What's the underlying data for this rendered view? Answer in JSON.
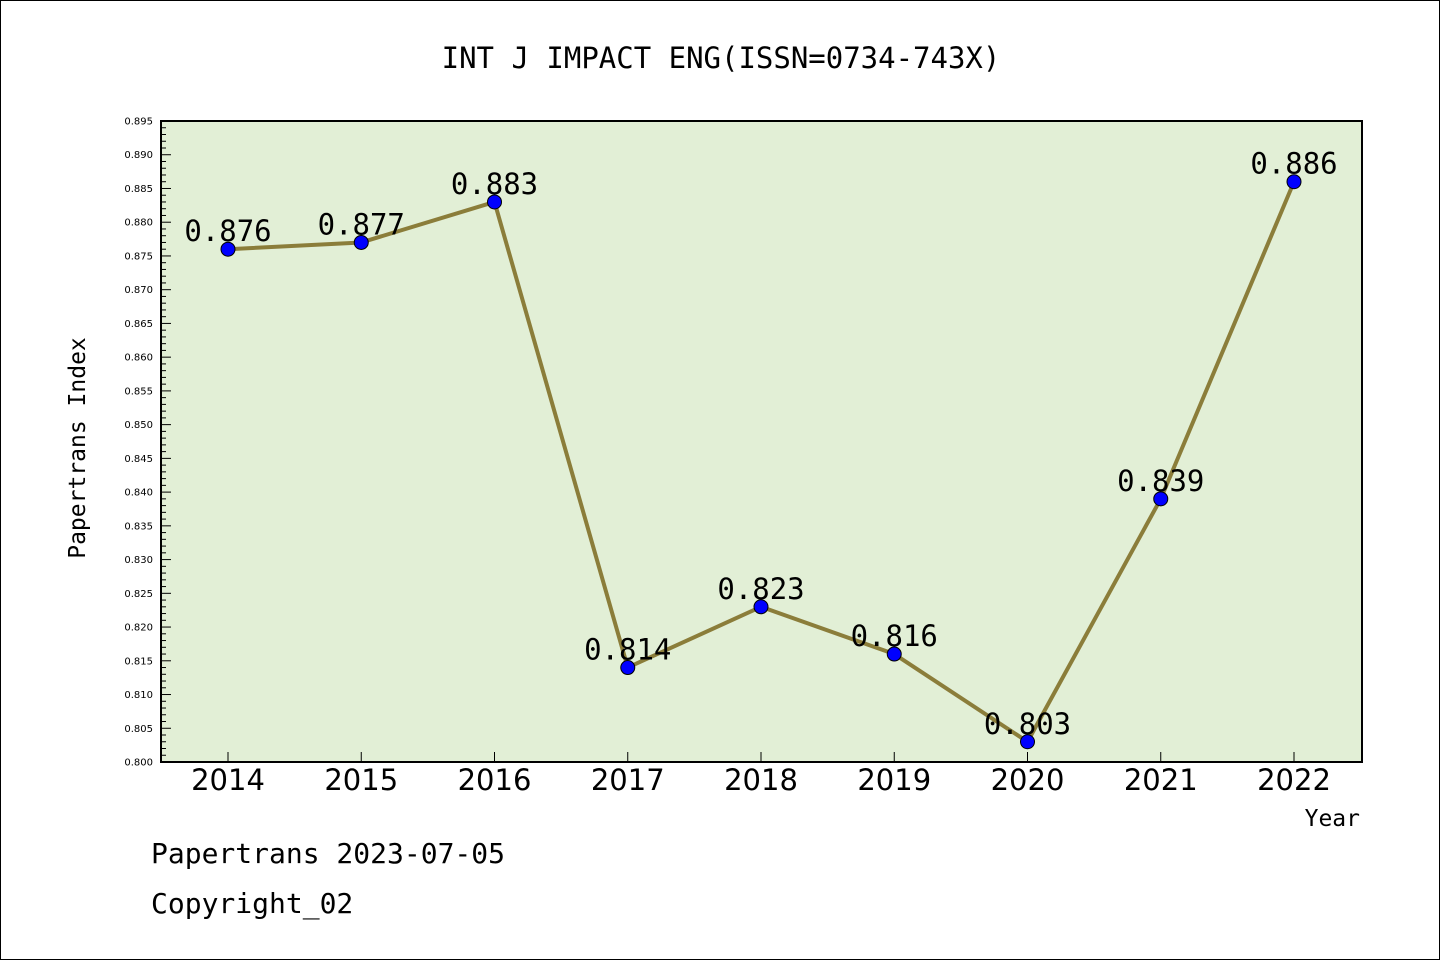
{
  "chart_data": {
    "type": "line",
    "title": "INT J IMPACT ENG(ISSN=0734-743X)",
    "xlabel": "Year",
    "ylabel": "Papertrans Index",
    "categories": [
      "2014",
      "2015",
      "2016",
      "2017",
      "2018",
      "2019",
      "2020",
      "2021",
      "2022"
    ],
    "values": [
      0.876,
      0.877,
      0.883,
      0.814,
      0.823,
      0.816,
      0.803,
      0.839,
      0.886
    ],
    "data_labels": [
      "0.876",
      "0.877",
      "0.883",
      "0.814",
      "0.823",
      "0.816",
      "0.803",
      "0.839",
      "0.886"
    ],
    "ylim": [
      0.8,
      0.895
    ],
    "ytick_labels": [
      "0.800",
      "0.805",
      "0.810",
      "0.815",
      "0.820",
      "0.825",
      "0.830",
      "0.835",
      "0.840",
      "0.845",
      "0.850",
      "0.855",
      "0.860",
      "0.865",
      "0.870",
      "0.875",
      "0.880",
      "0.885",
      "0.890",
      "0.895"
    ],
    "grid": false,
    "legend": "none",
    "colors": {
      "plot_background": "#e2efd6",
      "line": "#8b7d3a",
      "marker": "#0000ff"
    }
  },
  "footer": {
    "line1": "Papertrans 2023-07-05",
    "line2": "Copyright_02"
  }
}
